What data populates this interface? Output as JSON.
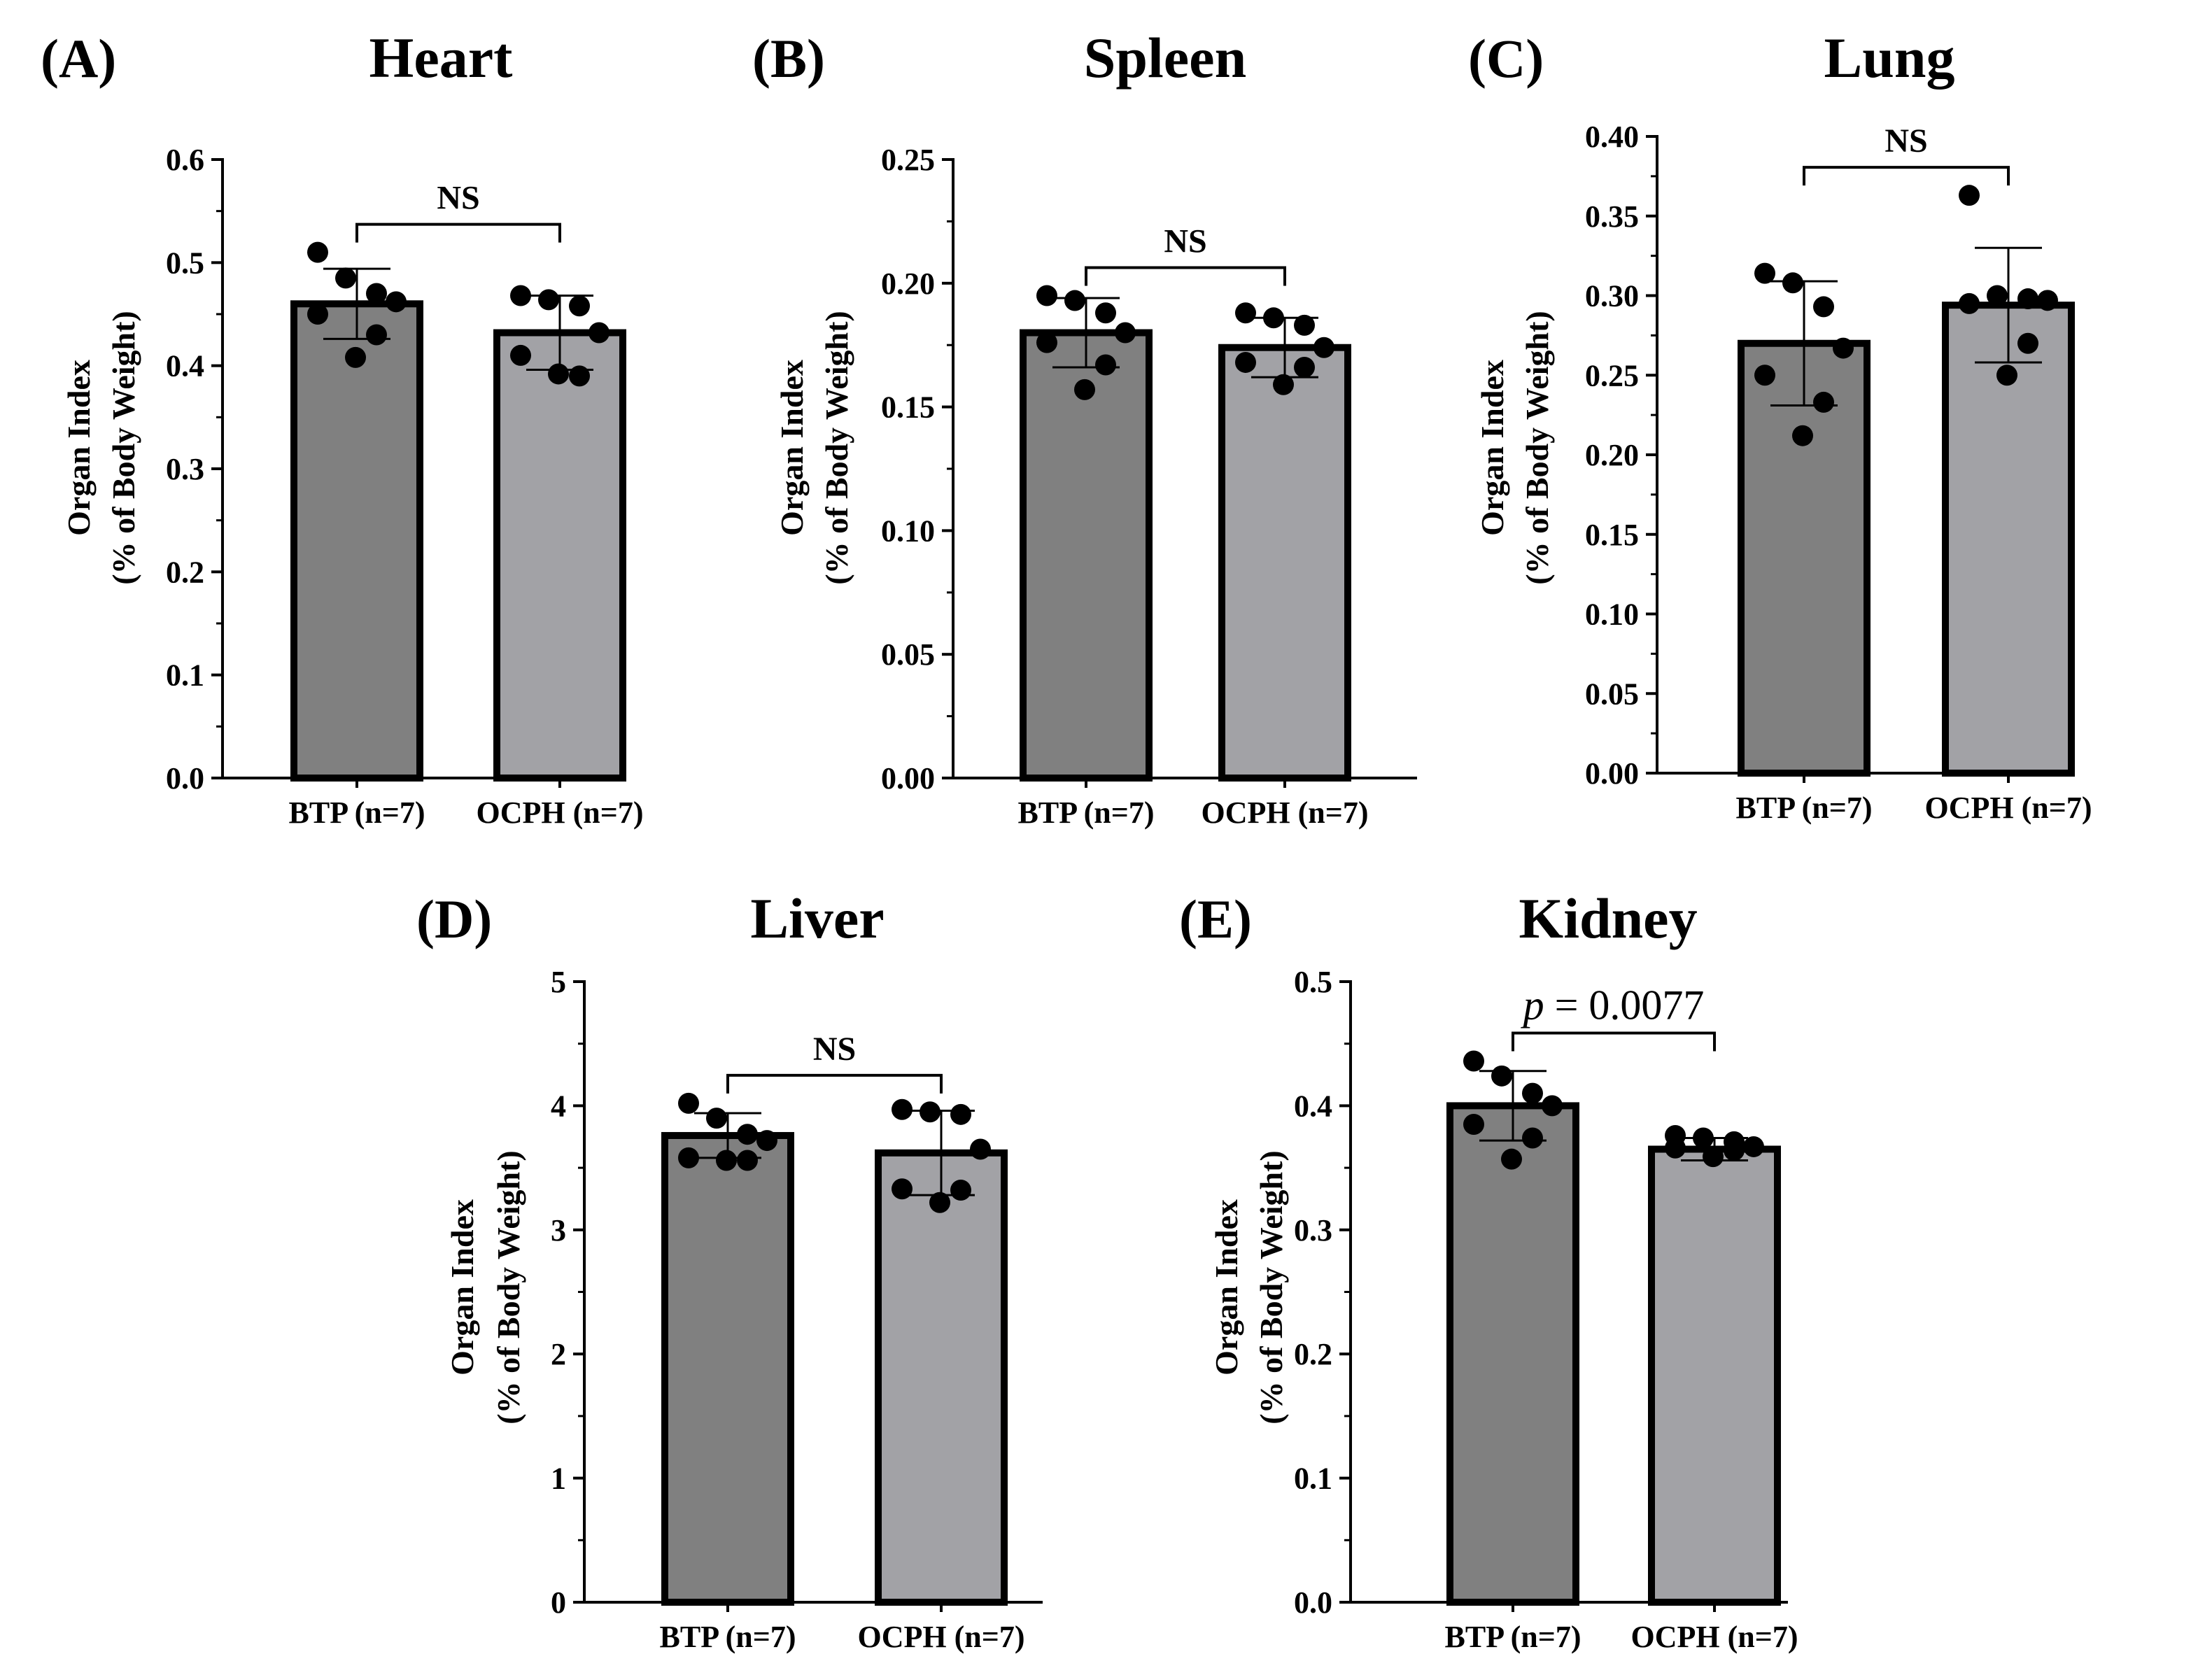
{
  "chart_data": [
    {
      "panel": "(A)",
      "title": "Heart",
      "type": "bar",
      "ylabel_line1": "Organ Index",
      "ylabel_line2": "(% of Body Weight)",
      "categories": [
        "BTP (n=7)",
        "OCPH (n=7)"
      ],
      "colors": [
        "#808080",
        "#a2a2a6"
      ],
      "ylim": [
        0,
        0.6
      ],
      "yticks": [
        "0.0",
        "0.1",
        "0.2",
        "0.3",
        "0.4",
        "0.5",
        "0.6"
      ],
      "minor_per_major": 1,
      "means": [
        0.46,
        0.432
      ],
      "sd": [
        0.034,
        0.036
      ],
      "points": [
        [
          0.51,
          0.485,
          0.47,
          0.462,
          0.45,
          0.43,
          0.408
        ],
        [
          0.468,
          0.464,
          0.458,
          0.432,
          0.41,
          0.39,
          0.392
        ]
      ],
      "significance": {
        "label": "NS",
        "italic_p": false
      }
    },
    {
      "panel": "(B)",
      "title": "Spleen",
      "type": "bar",
      "ylabel_line1": "Organ Index",
      "ylabel_line2": "(% of Body Weight)",
      "categories": [
        "BTP (n=7)",
        "OCPH (n=7)"
      ],
      "colors": [
        "#808080",
        "#a2a2a6"
      ],
      "ylim": [
        0,
        0.25
      ],
      "yticks": [
        "0.00",
        "0.05",
        "0.10",
        "0.15",
        "0.20",
        "0.25"
      ],
      "minor_per_major": 1,
      "means": [
        0.18,
        0.174
      ],
      "sd": [
        0.014,
        0.012
      ],
      "points": [
        [
          0.195,
          0.193,
          0.188,
          0.18,
          0.176,
          0.167,
          0.157
        ],
        [
          0.188,
          0.186,
          0.183,
          0.174,
          0.168,
          0.166,
          0.159
        ]
      ],
      "significance": {
        "label": "NS",
        "italic_p": false
      }
    },
    {
      "panel": "(C)",
      "title": "Lung",
      "type": "bar",
      "ylabel_line1": "Organ Index",
      "ylabel_line2": "(% of Body Weight)",
      "categories": [
        "BTP (n=7)",
        "OCPH (n=7)"
      ],
      "colors": [
        "#808080",
        "#a2a2a6"
      ],
      "ylim": [
        0,
        0.4
      ],
      "yticks": [
        "0.00",
        "0.05",
        "0.10",
        "0.15",
        "0.20",
        "0.25",
        "0.30",
        "0.35",
        "0.40"
      ],
      "minor_per_major": 1,
      "means": [
        0.27,
        0.294
      ],
      "sd": [
        0.039,
        0.036
      ],
      "points": [
        [
          0.314,
          0.308,
          0.293,
          0.267,
          0.25,
          0.233,
          0.212
        ],
        [
          0.363,
          0.3,
          0.298,
          0.297,
          0.295,
          0.27,
          0.25
        ]
      ],
      "significance": {
        "label": "NS",
        "italic_p": false
      }
    },
    {
      "panel": "(D)",
      "title": "Liver",
      "type": "bar",
      "ylabel_line1": "Organ Index",
      "ylabel_line2": "(% of Body Weight)",
      "categories": [
        "BTP (n=7)",
        "OCPH (n=7)"
      ],
      "colors": [
        "#808080",
        "#a2a2a6"
      ],
      "ylim": [
        0,
        5
      ],
      "yticks": [
        "0",
        "1",
        "2",
        "3",
        "4",
        "5"
      ],
      "minor_per_major": 1,
      "means": [
        3.76,
        3.62
      ],
      "sd": [
        0.18,
        0.34
      ],
      "points": [
        [
          4.02,
          3.9,
          3.77,
          3.72,
          3.58,
          3.56,
          3.56
        ],
        [
          3.97,
          3.95,
          3.93,
          3.65,
          3.33,
          3.32,
          3.22
        ]
      ],
      "significance": {
        "label": "NS",
        "italic_p": false
      }
    },
    {
      "panel": "(E)",
      "title": "Kidney",
      "type": "bar",
      "ylabel_line1": "Organ Index",
      "ylabel_line2": "(% of Body Weight)",
      "categories": [
        "BTP (n=7)",
        "OCPH (n=7)"
      ],
      "colors": [
        "#808080",
        "#a2a2a6"
      ],
      "ylim": [
        0,
        0.5
      ],
      "yticks": [
        "0.0",
        "0.1",
        "0.2",
        "0.3",
        "0.4",
        "0.5"
      ],
      "minor_per_major": 1,
      "means": [
        0.4,
        0.365
      ],
      "sd": [
        0.028,
        0.009
      ],
      "points": [
        [
          0.436,
          0.424,
          0.41,
          0.4,
          0.385,
          0.374,
          0.357
        ],
        [
          0.376,
          0.374,
          0.371,
          0.367,
          0.366,
          0.364,
          0.359
        ]
      ],
      "significance": {
        "label": "p = 0.0077",
        "italic_p": true,
        "p_prefix": "p",
        "p_value": " = 0.0077"
      }
    }
  ]
}
